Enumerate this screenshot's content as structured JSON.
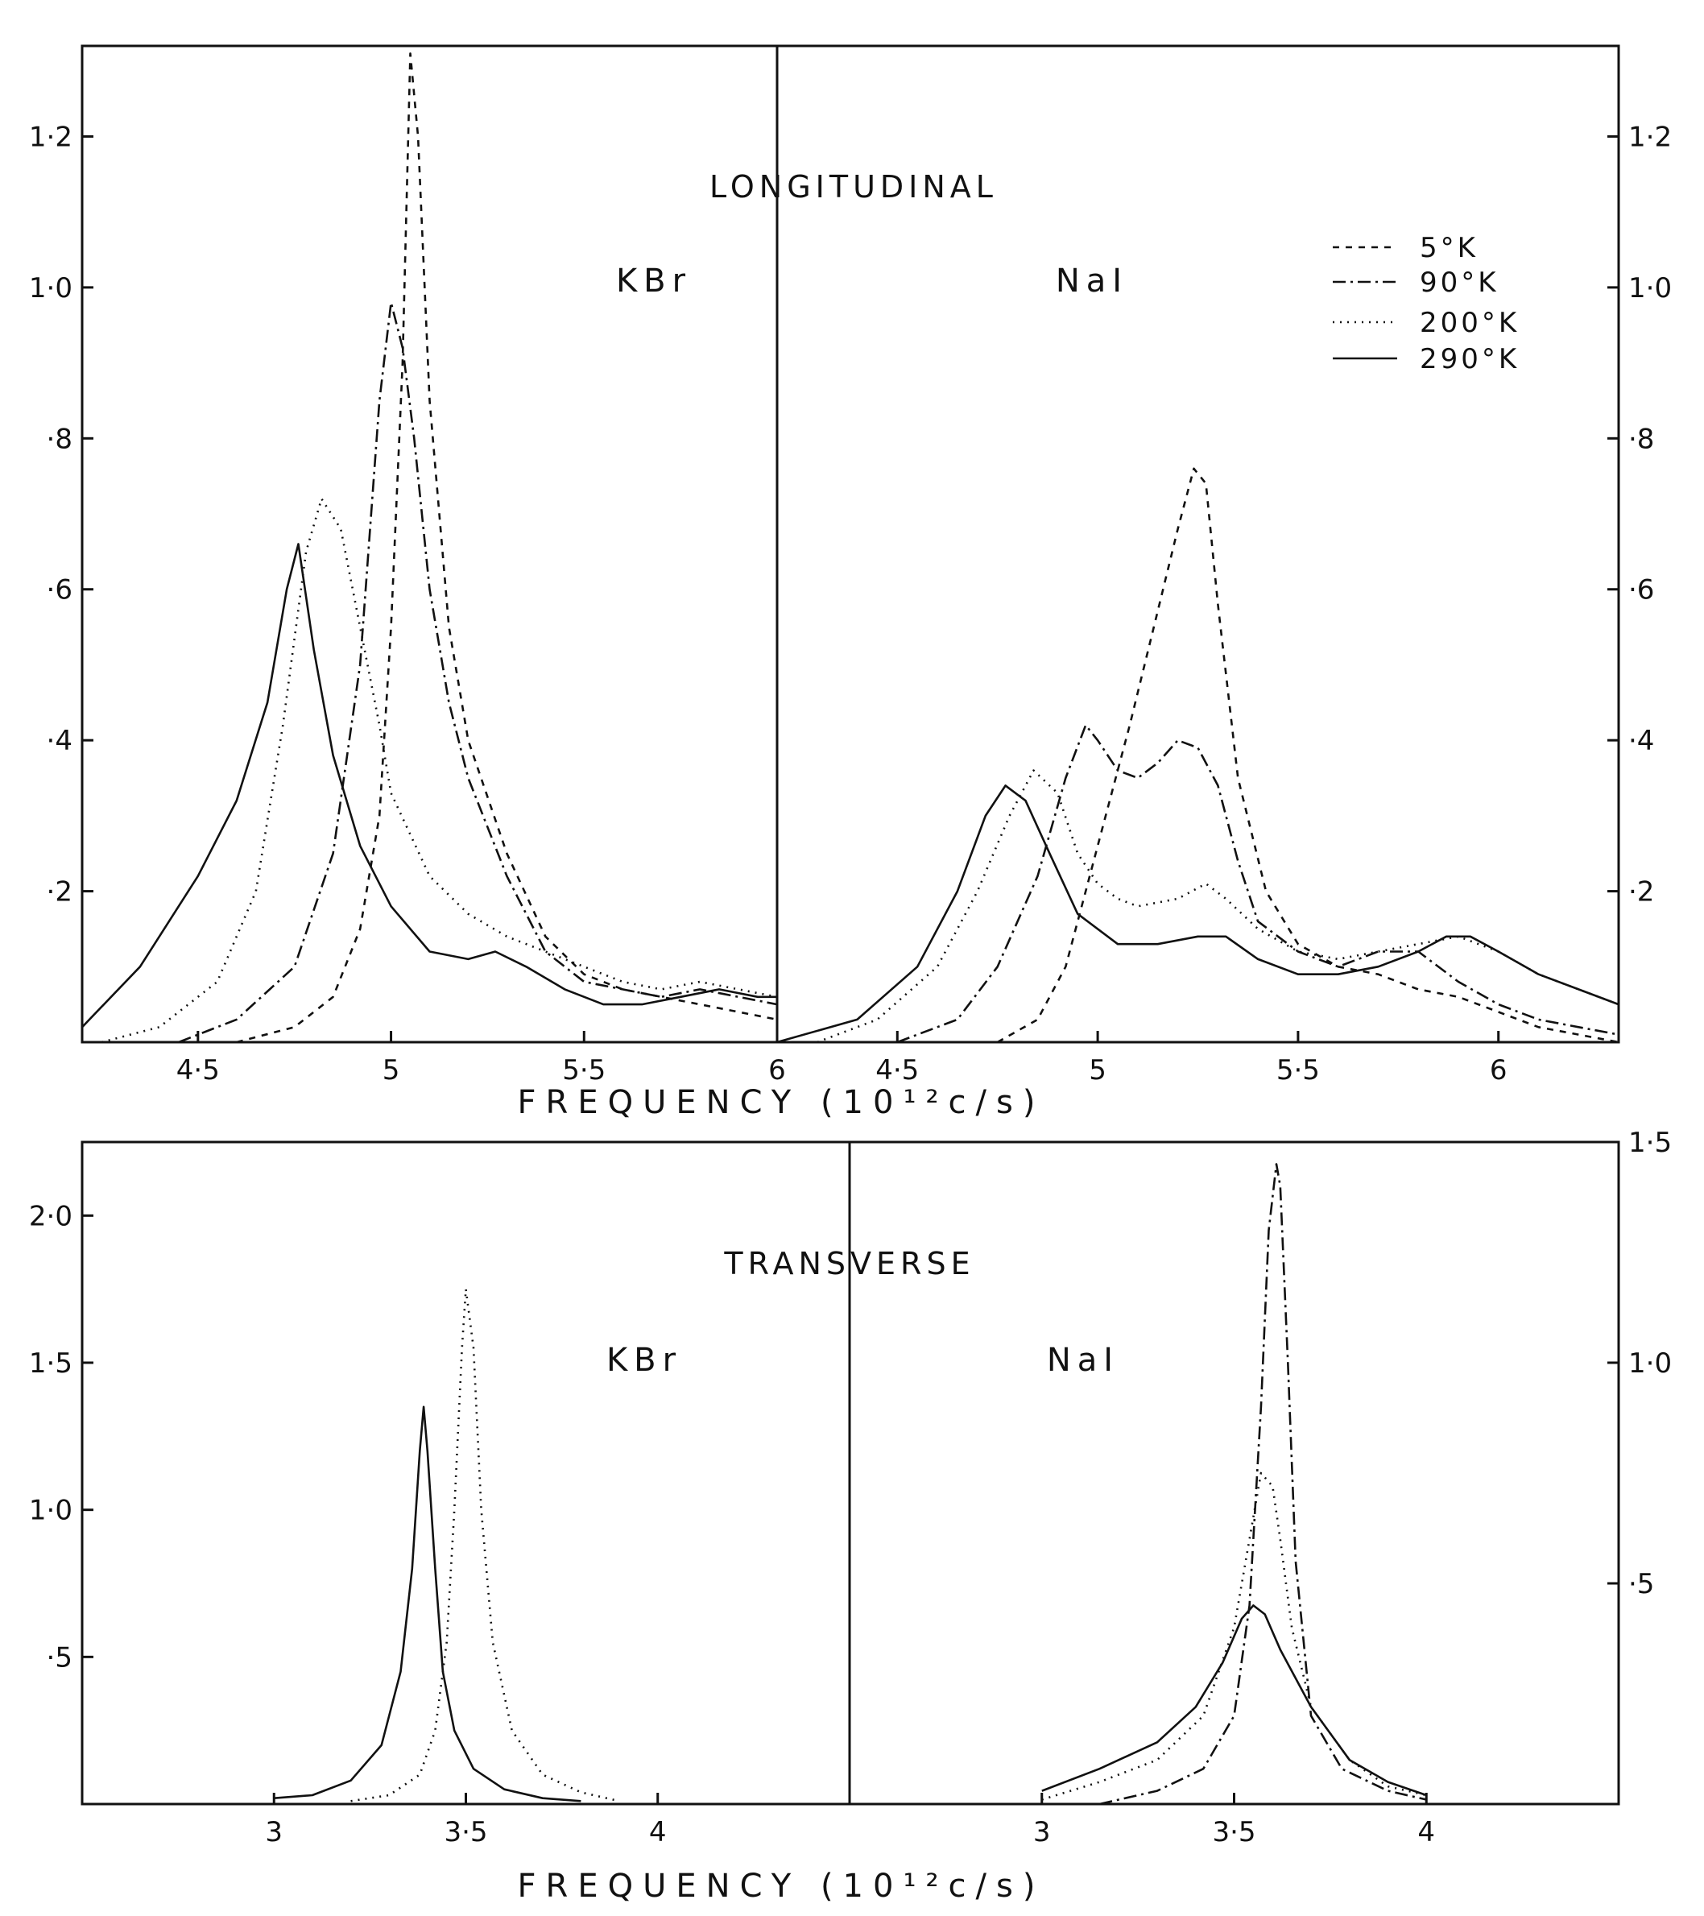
{
  "styles": {
    "5K": "8,8",
    "90K": "16,6,3,6",
    "200K": "2,7",
    "290K": "none"
  },
  "legend": [
    {
      "series": "5K",
      "label": "5°K"
    },
    {
      "series": "90K",
      "label": "90°K"
    },
    {
      "series": "200K",
      "label": "200°K"
    },
    {
      "series": "290K",
      "label": "290°K"
    }
  ],
  "top_xlabel": "FREQUENCY  (10¹²c/s)",
  "bottom_xlabel": "FREQUENCY  (10¹²c/s)",
  "chart_data": [
    {
      "id": "long_kbr",
      "type": "line",
      "heading": "LONGITUDINAL",
      "label": "KBr",
      "xlim": [
        4.2,
        6.0
      ],
      "ylim": [
        0,
        1.32
      ],
      "xticks": [
        {
          "v": 4.5,
          "t": "4·5"
        },
        {
          "v": 5.0,
          "t": "5"
        },
        {
          "v": 5.5,
          "t": "5·5"
        },
        {
          "v": 6.0,
          "t": "6"
        }
      ],
      "yticks": [
        {
          "v": 0.2,
          "t": "·2"
        },
        {
          "v": 0.4,
          "t": "·4"
        },
        {
          "v": 0.6,
          "t": "·6"
        },
        {
          "v": 0.8,
          "t": "·8"
        },
        {
          "v": 1.0,
          "t": "1·0"
        },
        {
          "v": 1.2,
          "t": "1·2"
        }
      ],
      "series": [
        {
          "name": "5°K",
          "style": "5K",
          "x": [
            4.6,
            4.75,
            4.85,
            4.92,
            4.97,
            5.0,
            5.03,
            5.05,
            5.07,
            5.1,
            5.15,
            5.2,
            5.3,
            5.4,
            5.5,
            5.6,
            5.7,
            5.8,
            5.9,
            6.0
          ],
          "y": [
            0,
            0.02,
            0.06,
            0.15,
            0.3,
            0.55,
            0.9,
            1.31,
            1.2,
            0.85,
            0.55,
            0.4,
            0.25,
            0.14,
            0.09,
            0.07,
            0.06,
            0.05,
            0.04,
            0.03
          ]
        },
        {
          "name": "90°K",
          "style": "90K",
          "x": [
            4.45,
            4.6,
            4.75,
            4.85,
            4.92,
            4.97,
            5.0,
            5.03,
            5.06,
            5.1,
            5.15,
            5.2,
            5.3,
            5.4,
            5.5,
            5.6,
            5.7,
            5.8,
            5.9,
            6.0
          ],
          "y": [
            0,
            0.03,
            0.1,
            0.25,
            0.5,
            0.85,
            0.98,
            0.92,
            0.8,
            0.6,
            0.45,
            0.35,
            0.22,
            0.12,
            0.08,
            0.07,
            0.06,
            0.07,
            0.06,
            0.05
          ]
        },
        {
          "name": "200°K",
          "style": "200K",
          "x": [
            4.25,
            4.4,
            4.55,
            4.65,
            4.72,
            4.78,
            4.82,
            4.87,
            4.92,
            4.97,
            5.0,
            5.1,
            5.2,
            5.3,
            5.4,
            5.5,
            5.6,
            5.7,
            5.8,
            5.9,
            6.0
          ],
          "y": [
            0,
            0.02,
            0.08,
            0.2,
            0.42,
            0.65,
            0.72,
            0.68,
            0.55,
            0.42,
            0.33,
            0.22,
            0.17,
            0.14,
            0.12,
            0.1,
            0.08,
            0.07,
            0.08,
            0.07,
            0.06
          ]
        },
        {
          "name": "290°K",
          "style": "290K",
          "x": [
            4.2,
            4.35,
            4.5,
            4.6,
            4.68,
            4.73,
            4.76,
            4.8,
            4.85,
            4.92,
            5.0,
            5.1,
            5.2,
            5.27,
            5.35,
            5.45,
            5.55,
            5.65,
            5.75,
            5.85,
            5.95,
            6.0
          ],
          "y": [
            0.02,
            0.1,
            0.22,
            0.32,
            0.45,
            0.6,
            0.66,
            0.52,
            0.38,
            0.26,
            0.18,
            0.12,
            0.11,
            0.12,
            0.1,
            0.07,
            0.05,
            0.05,
            0.06,
            0.07,
            0.06,
            0.06
          ]
        }
      ]
    },
    {
      "id": "long_nai",
      "type": "line",
      "label": "NaI",
      "xlim": [
        4.2,
        6.3
      ],
      "ylim": [
        0,
        1.32
      ],
      "xticks": [
        {
          "v": 4.5,
          "t": "4·5"
        },
        {
          "v": 5.0,
          "t": "5"
        },
        {
          "v": 5.5,
          "t": "5·5"
        },
        {
          "v": 6.0,
          "t": "6"
        }
      ],
      "yticks": [
        {
          "v": 0.2,
          "t": "·2"
        },
        {
          "v": 0.4,
          "t": "·4"
        },
        {
          "v": 0.6,
          "t": "·6"
        },
        {
          "v": 0.8,
          "t": "·8"
        },
        {
          "v": 1.0,
          "t": "1·0"
        },
        {
          "v": 1.2,
          "t": "1·2"
        }
      ],
      "series": [
        {
          "name": "5°K",
          "style": "5K",
          "x": [
            4.75,
            4.85,
            4.92,
            4.97,
            5.02,
            5.08,
            5.14,
            5.2,
            5.24,
            5.27,
            5.3,
            5.35,
            5.42,
            5.5,
            5.6,
            5.7,
            5.8,
            5.9,
            6.0,
            6.1,
            6.2,
            6.3
          ],
          "y": [
            0,
            0.03,
            0.1,
            0.2,
            0.3,
            0.42,
            0.55,
            0.68,
            0.76,
            0.74,
            0.58,
            0.35,
            0.2,
            0.13,
            0.1,
            0.09,
            0.07,
            0.06,
            0.04,
            0.02,
            0.01,
            0
          ]
        },
        {
          "name": "90°K",
          "style": "90K",
          "x": [
            4.5,
            4.65,
            4.75,
            4.85,
            4.92,
            4.97,
            5.0,
            5.05,
            5.1,
            5.15,
            5.2,
            5.25,
            5.3,
            5.35,
            5.4,
            5.5,
            5.6,
            5.7,
            5.8,
            5.9,
            6.0,
            6.1,
            6.2,
            6.3
          ],
          "y": [
            0,
            0.03,
            0.1,
            0.22,
            0.35,
            0.42,
            0.4,
            0.36,
            0.35,
            0.37,
            0.4,
            0.39,
            0.34,
            0.24,
            0.16,
            0.12,
            0.1,
            0.12,
            0.12,
            0.08,
            0.05,
            0.03,
            0.02,
            0.01
          ]
        },
        {
          "name": "200°K",
          "style": "200K",
          "x": [
            4.3,
            4.45,
            4.6,
            4.7,
            4.78,
            4.84,
            4.9,
            4.95,
            5.0,
            5.05,
            5.1,
            5.2,
            5.27,
            5.32,
            5.4,
            5.5,
            5.6,
            5.7,
            5.8,
            5.9,
            6.0,
            6.1,
            6.2,
            6.3
          ],
          "y": [
            0,
            0.03,
            0.1,
            0.2,
            0.3,
            0.36,
            0.33,
            0.25,
            0.21,
            0.19,
            0.18,
            0.19,
            0.21,
            0.19,
            0.15,
            0.12,
            0.11,
            0.12,
            0.13,
            0.14,
            0.12,
            0.09,
            0.07,
            0.05
          ]
        },
        {
          "name": "290°K",
          "style": "290K",
          "x": [
            4.2,
            4.4,
            4.55,
            4.65,
            4.72,
            4.77,
            4.82,
            4.88,
            4.95,
            5.05,
            5.15,
            5.25,
            5.32,
            5.4,
            5.5,
            5.6,
            5.7,
            5.8,
            5.87,
            5.93,
            6.0,
            6.1,
            6.2,
            6.3
          ],
          "y": [
            0,
            0.03,
            0.1,
            0.2,
            0.3,
            0.34,
            0.32,
            0.25,
            0.17,
            0.13,
            0.13,
            0.14,
            0.14,
            0.11,
            0.09,
            0.09,
            0.1,
            0.12,
            0.14,
            0.14,
            0.12,
            0.09,
            0.07,
            0.05
          ]
        }
      ]
    },
    {
      "id": "trans_kbr",
      "type": "line",
      "heading": "TRANSVERSE",
      "label": "KBr",
      "xlim": [
        2.5,
        4.5
      ],
      "ylim": [
        0,
        2.25
      ],
      "xticks": [
        {
          "v": 3.0,
          "t": "3"
        },
        {
          "v": 3.5,
          "t": "3·5"
        },
        {
          "v": 4.0,
          "t": "4"
        }
      ],
      "yticks": [
        {
          "v": 0.5,
          "t": "·5"
        },
        {
          "v": 1.0,
          "t": "1·0"
        },
        {
          "v": 1.5,
          "t": "1·5"
        },
        {
          "v": 2.0,
          "t": "2·0"
        }
      ],
      "series": [
        {
          "name": "200°K",
          "style": "200K",
          "x": [
            3.2,
            3.3,
            3.38,
            3.42,
            3.45,
            3.47,
            3.49,
            3.5,
            3.52,
            3.54,
            3.57,
            3.62,
            3.7,
            3.8,
            3.9
          ],
          "y": [
            0.01,
            0.03,
            0.1,
            0.25,
            0.55,
            1.0,
            1.55,
            1.75,
            1.55,
            1.0,
            0.55,
            0.25,
            0.1,
            0.04,
            0.01
          ]
        },
        {
          "name": "290°K",
          "style": "290K",
          "x": [
            3.0,
            3.1,
            3.2,
            3.28,
            3.33,
            3.36,
            3.38,
            3.39,
            3.4,
            3.42,
            3.44,
            3.47,
            3.52,
            3.6,
            3.7,
            3.8
          ],
          "y": [
            0.02,
            0.03,
            0.08,
            0.2,
            0.45,
            0.8,
            1.2,
            1.35,
            1.2,
            0.8,
            0.45,
            0.25,
            0.12,
            0.05,
            0.02,
            0.01
          ]
        }
      ]
    },
    {
      "id": "trans_nai",
      "type": "line",
      "label": "NaI",
      "xlim": [
        2.5,
        4.5
      ],
      "ylim": [
        0,
        1.5
      ],
      "xticks": [
        {
          "v": 3.0,
          "t": "3"
        },
        {
          "v": 3.5,
          "t": "3·5"
        },
        {
          "v": 4.0,
          "t": "4"
        }
      ],
      "yticks": [
        {
          "v": 0.5,
          "t": "·5"
        },
        {
          "v": 1.0,
          "t": "1·0"
        },
        {
          "v": 1.5,
          "t": "1·5"
        }
      ],
      "series": [
        {
          "name": "90°K",
          "style": "90K",
          "x": [
            3.15,
            3.3,
            3.42,
            3.5,
            3.54,
            3.57,
            3.59,
            3.61,
            3.62,
            3.64,
            3.66,
            3.7,
            3.78,
            3.9,
            4.0
          ],
          "y": [
            0,
            0.03,
            0.08,
            0.2,
            0.45,
            0.9,
            1.3,
            1.45,
            1.4,
            1.0,
            0.55,
            0.2,
            0.08,
            0.03,
            0.01
          ]
        },
        {
          "name": "200°K",
          "style": "200K",
          "x": [
            3.0,
            3.15,
            3.3,
            3.42,
            3.5,
            3.54,
            3.57,
            3.6,
            3.62,
            3.65,
            3.7,
            3.8,
            3.9,
            4.0
          ],
          "y": [
            0.01,
            0.05,
            0.1,
            0.2,
            0.4,
            0.6,
            0.75,
            0.72,
            0.6,
            0.4,
            0.22,
            0.1,
            0.04,
            0.02
          ]
        },
        {
          "name": "290°K",
          "style": "290K",
          "x": [
            3.0,
            3.15,
            3.3,
            3.4,
            3.47,
            3.52,
            3.55,
            3.58,
            3.62,
            3.7,
            3.8,
            3.9,
            4.0
          ],
          "y": [
            0.03,
            0.08,
            0.14,
            0.22,
            0.32,
            0.42,
            0.45,
            0.43,
            0.35,
            0.22,
            0.1,
            0.05,
            0.02
          ]
        }
      ]
    }
  ]
}
